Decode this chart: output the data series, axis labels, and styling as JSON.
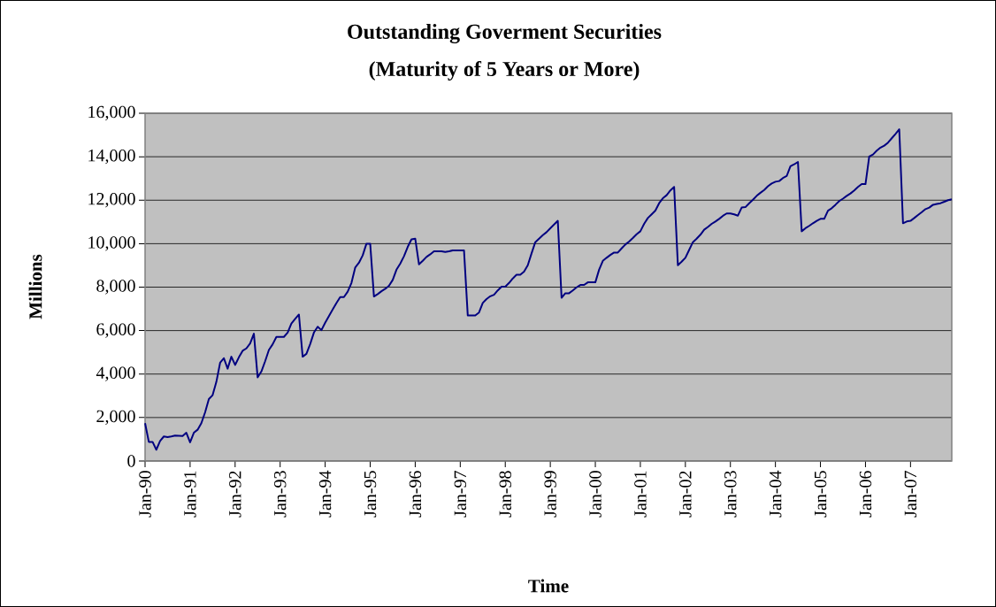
{
  "chart_data": {
    "type": "line",
    "title": "Outstanding Goverment Securities",
    "subtitle": "(Maturity of 5 Years or More)",
    "xlabel": "Time",
    "ylabel": "Millions",
    "x": [
      "1990-01",
      "1990-02",
      "1990-03",
      "1990-04",
      "1990-05",
      "1990-06",
      "1990-07",
      "1990-08",
      "1990-09",
      "1990-10",
      "1990-11",
      "1990-12",
      "1991-01",
      "1991-02",
      "1991-03",
      "1991-04",
      "1991-05",
      "1991-06",
      "1991-07",
      "1991-08",
      "1991-09",
      "1991-10",
      "1991-11",
      "1991-12",
      "1992-01",
      "1992-02",
      "1992-03",
      "1992-04",
      "1992-05",
      "1992-06",
      "1992-07",
      "1992-08",
      "1992-09",
      "1992-10",
      "1992-11",
      "1992-12",
      "1993-01",
      "1993-02",
      "1993-03",
      "1993-04",
      "1993-05",
      "1993-06",
      "1993-07",
      "1993-08",
      "1993-09",
      "1993-10",
      "1993-11",
      "1993-12",
      "1994-01",
      "1994-02",
      "1994-03",
      "1994-04",
      "1994-05",
      "1994-06",
      "1994-07",
      "1994-08",
      "1994-09",
      "1994-10",
      "1994-11",
      "1994-12",
      "1995-01",
      "1995-02",
      "1995-03",
      "1995-04",
      "1995-05",
      "1995-06",
      "1995-07",
      "1995-08",
      "1995-09",
      "1995-10",
      "1995-11",
      "1995-12",
      "1996-01",
      "1996-02",
      "1996-03",
      "1996-04",
      "1996-05",
      "1996-06",
      "1996-07",
      "1996-08",
      "1996-09",
      "1996-10",
      "1996-11",
      "1996-12",
      "1997-01",
      "1997-02",
      "1997-03",
      "1997-04",
      "1997-05",
      "1997-06",
      "1997-07",
      "1997-08",
      "1997-09",
      "1997-10",
      "1997-11",
      "1997-12",
      "1998-01",
      "1998-02",
      "1998-03",
      "1998-04",
      "1998-05",
      "1998-06",
      "1998-07",
      "1998-08",
      "1998-09",
      "1998-10",
      "1998-11",
      "1998-12",
      "1999-01",
      "1999-02",
      "1999-03",
      "1999-04",
      "1999-05",
      "1999-06",
      "1999-07",
      "1999-08",
      "1999-09",
      "1999-10",
      "1999-11",
      "1999-12",
      "2000-01",
      "2000-02",
      "2000-03",
      "2000-04",
      "2000-05",
      "2000-06",
      "2000-07",
      "2000-08",
      "2000-09",
      "2000-10",
      "2000-11",
      "2000-12",
      "2001-01",
      "2001-02",
      "2001-03",
      "2001-04",
      "2001-05",
      "2001-06",
      "2001-07",
      "2001-08",
      "2001-09",
      "2001-10",
      "2001-11",
      "2001-12",
      "2002-01",
      "2002-02",
      "2002-03",
      "2002-04",
      "2002-05",
      "2002-06",
      "2002-07",
      "2002-08",
      "2002-09",
      "2002-10",
      "2002-11",
      "2002-12",
      "2003-01",
      "2003-02",
      "2003-03",
      "2003-04",
      "2003-05",
      "2003-06",
      "2003-07",
      "2003-08",
      "2003-09",
      "2003-10",
      "2003-11",
      "2003-12",
      "2004-01",
      "2004-02",
      "2004-03",
      "2004-04",
      "2004-05",
      "2004-06",
      "2004-07",
      "2004-08",
      "2004-09",
      "2004-10",
      "2004-11",
      "2004-12",
      "2005-01",
      "2005-02",
      "2005-03",
      "2005-04",
      "2005-05",
      "2005-06",
      "2005-07",
      "2005-08",
      "2005-09",
      "2005-10",
      "2005-11",
      "2005-12",
      "2006-01",
      "2006-02",
      "2006-03",
      "2006-04",
      "2006-05",
      "2006-06",
      "2006-07",
      "2006-08",
      "2006-09",
      "2006-10",
      "2006-11",
      "2006-12",
      "2007-01",
      "2007-02",
      "2007-03",
      "2007-04",
      "2007-05",
      "2007-06",
      "2007-07",
      "2007-08",
      "2007-09",
      "2007-10",
      "2007-11",
      "2007-12"
    ],
    "series": [
      {
        "color": "#000080",
        "values": [
          1740,
          880,
          880,
          520,
          920,
          1130,
          1100,
          1130,
          1170,
          1160,
          1150,
          1300,
          860,
          1300,
          1440,
          1740,
          2240,
          2850,
          3030,
          3640,
          4520,
          4730,
          4250,
          4800,
          4420,
          4770,
          5070,
          5180,
          5410,
          5860,
          3850,
          4120,
          4590,
          5110,
          5370,
          5710,
          5710,
          5710,
          5910,
          6330,
          6540,
          6740,
          4800,
          4930,
          5380,
          5910,
          6180,
          6020,
          6360,
          6670,
          6970,
          7270,
          7540,
          7540,
          7790,
          8190,
          8900,
          9120,
          9460,
          10000,
          10000,
          7570,
          7680,
          7810,
          7920,
          8060,
          8330,
          8800,
          9080,
          9420,
          9850,
          10200,
          10230,
          9050,
          9210,
          9390,
          9510,
          9650,
          9650,
          9650,
          9620,
          9650,
          9690,
          9690,
          9690,
          9690,
          6700,
          6700,
          6700,
          6830,
          7270,
          7450,
          7580,
          7650,
          7850,
          8020,
          8020,
          8190,
          8400,
          8570,
          8570,
          8710,
          9010,
          9550,
          10070,
          10230,
          10390,
          10530,
          10710,
          10880,
          11050,
          7510,
          7720,
          7720,
          7850,
          7990,
          8100,
          8100,
          8220,
          8220,
          8220,
          8800,
          9210,
          9350,
          9480,
          9590,
          9590,
          9780,
          9960,
          10100,
          10260,
          10430,
          10570,
          10910,
          11180,
          11350,
          11520,
          11860,
          12090,
          12230,
          12450,
          12610,
          9010,
          9170,
          9350,
          9710,
          10070,
          10230,
          10410,
          10640,
          10770,
          10910,
          11020,
          11140,
          11280,
          11390,
          11390,
          11350,
          11290,
          11660,
          11680,
          11860,
          12020,
          12200,
          12340,
          12470,
          12640,
          12770,
          12850,
          12880,
          13020,
          13110,
          13560,
          13650,
          13760,
          10570,
          10710,
          10820,
          10940,
          11050,
          11140,
          11140,
          11520,
          11630,
          11790,
          11960,
          12070,
          12200,
          12310,
          12450,
          12610,
          12740,
          12740,
          14010,
          14100,
          14280,
          14420,
          14510,
          14650,
          14850,
          15050,
          15260,
          10940,
          11020,
          11050,
          11180,
          11320,
          11450,
          11590,
          11660,
          11790,
          11830,
          11860,
          11930,
          12000,
          12040
        ]
      }
    ],
    "xlim": [
      "1990-01",
      "2007-12"
    ],
    "xticks": [
      {
        "value": "1990-01",
        "label": "Jan-90"
      },
      {
        "value": "1991-01",
        "label": "Jan-91"
      },
      {
        "value": "1992-01",
        "label": "Jan-92"
      },
      {
        "value": "1993-01",
        "label": "Jan-93"
      },
      {
        "value": "1994-01",
        "label": "Jan-94"
      },
      {
        "value": "1995-01",
        "label": "Jan-95"
      },
      {
        "value": "1996-01",
        "label": "Jan-96"
      },
      {
        "value": "1997-01",
        "label": "Jan-97"
      },
      {
        "value": "1998-01",
        "label": "Jan-98"
      },
      {
        "value": "1999-01",
        "label": "Jan-99"
      },
      {
        "value": "2000-01",
        "label": "Jan-00"
      },
      {
        "value": "2001-01",
        "label": "Jan-01"
      },
      {
        "value": "2002-01",
        "label": "Jan-02"
      },
      {
        "value": "2003-01",
        "label": "Jan-03"
      },
      {
        "value": "2004-01",
        "label": "Jan-04"
      },
      {
        "value": "2005-01",
        "label": "Jan-05"
      },
      {
        "value": "2006-01",
        "label": "Jan-06"
      },
      {
        "value": "2007-01",
        "label": "Jan-07"
      }
    ],
    "ylim": [
      0,
      16000
    ],
    "yticks": [
      0,
      {
        "value": 2000,
        "label": "2,000"
      },
      {
        "value": 4000,
        "label": "4,000"
      },
      {
        "value": 6000,
        "label": "6,000"
      },
      {
        "value": 8000,
        "label": "8,000"
      },
      {
        "value": 10000,
        "label": "10,000"
      },
      {
        "value": 12000,
        "label": "12,000"
      },
      {
        "value": 14000,
        "label": "14,000"
      },
      {
        "value": 16000,
        "label": "16,000"
      }
    ],
    "grid": "y",
    "legend": false,
    "marker": "none",
    "line_style": "solid"
  }
}
